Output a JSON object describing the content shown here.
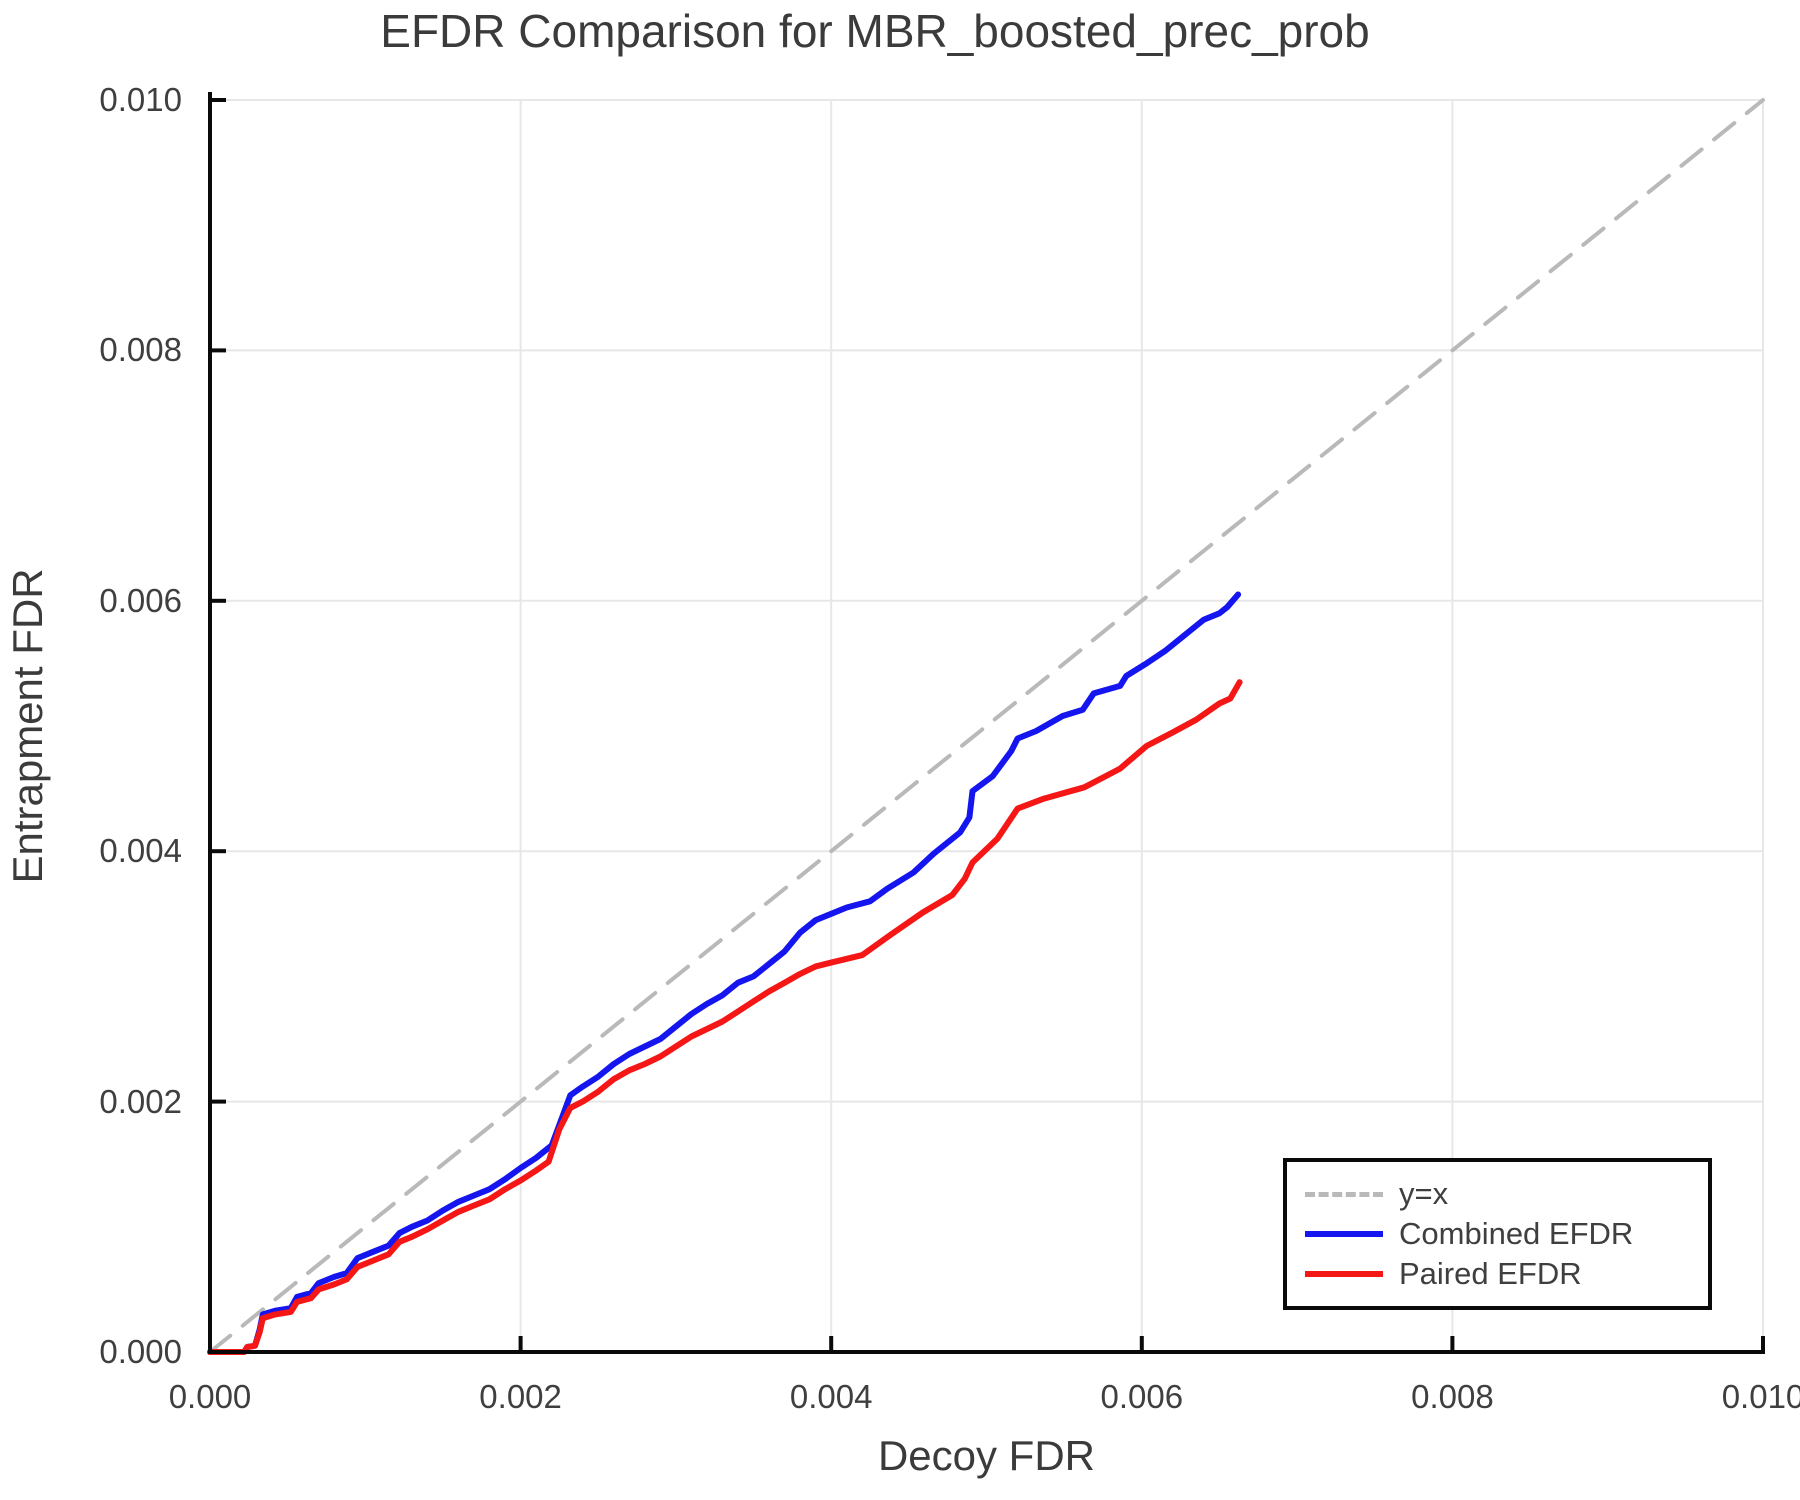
{
  "figure": {
    "title": "EFDR Comparison for MBR_boosted_prec_prob"
  },
  "colors": {
    "background": "#ffffff",
    "grid": "#e7e7e7",
    "spine": "#0a0a0a",
    "text": "#3b3b3b",
    "identity_line": "#b9b9b9",
    "combined_efdr": "#1515ef",
    "paired_efdr": "#f51616"
  },
  "chart_data": {
    "type": "line",
    "title": "EFDR Comparison for MBR_boosted_prec_prob",
    "xlabel": "Decoy FDR",
    "ylabel": "Entrapment FDR",
    "xlim": [
      0.0,
      0.01
    ],
    "ylim": [
      0.0,
      0.01
    ],
    "grid": true,
    "x_ticks": {
      "values": [
        0.0,
        0.002,
        0.004,
        0.006,
        0.008,
        0.01
      ],
      "labels": [
        "0.000",
        "0.002",
        "0.004",
        "0.006",
        "0.008",
        "0.010"
      ]
    },
    "y_ticks": {
      "values": [
        0.0,
        0.002,
        0.004,
        0.006,
        0.008,
        0.01
      ],
      "labels": [
        "0.000",
        "0.002",
        "0.004",
        "0.006",
        "0.008",
        "0.010"
      ]
    },
    "legend": {
      "position": "lower_right",
      "entries": [
        {
          "label": "y=x",
          "color": "#b9b9b9",
          "dashed": true
        },
        {
          "label": "Combined EFDR",
          "color": "#1515ef",
          "dashed": false
        },
        {
          "label": "Paired EFDR",
          "color": "#f51616",
          "dashed": false
        }
      ]
    },
    "series": [
      {
        "id": "identity",
        "name": "y=x",
        "color": "#b9b9b9",
        "width": 4,
        "dash": "26 16",
        "points": [
          [
            0.0,
            0.0
          ],
          [
            0.01,
            0.01
          ]
        ]
      },
      {
        "id": "combined-efdr",
        "name": "Combined EFDR",
        "color": "#1515ef",
        "width": 6,
        "dash": null,
        "points": [
          [
            0.0,
            0.0
          ],
          [
            0.00022,
            0.0
          ],
          [
            0.00024,
            4e-05
          ],
          [
            0.00029,
            5e-05
          ],
          [
            0.00032,
            0.00018
          ],
          [
            0.00034,
            0.0003
          ],
          [
            0.00042,
            0.00033
          ],
          [
            0.00052,
            0.00035
          ],
          [
            0.00056,
            0.00044
          ],
          [
            0.00065,
            0.00047
          ],
          [
            0.0007,
            0.00055
          ],
          [
            0.0008,
            0.0006
          ],
          [
            0.00088,
            0.00063
          ],
          [
            0.00095,
            0.00075
          ],
          [
            0.00105,
            0.0008
          ],
          [
            0.00115,
            0.00085
          ],
          [
            0.00122,
            0.00095
          ],
          [
            0.0013,
            0.001
          ],
          [
            0.0014,
            0.00105
          ],
          [
            0.0015,
            0.00113
          ],
          [
            0.0016,
            0.0012
          ],
          [
            0.0017,
            0.00125
          ],
          [
            0.0018,
            0.0013
          ],
          [
            0.0019,
            0.00138
          ],
          [
            0.002,
            0.00147
          ],
          [
            0.0021,
            0.00155
          ],
          [
            0.0022,
            0.00165
          ],
          [
            0.00226,
            0.00185
          ],
          [
            0.00232,
            0.00205
          ],
          [
            0.0024,
            0.00212
          ],
          [
            0.0025,
            0.0022
          ],
          [
            0.0026,
            0.0023
          ],
          [
            0.0027,
            0.00238
          ],
          [
            0.0028,
            0.00244
          ],
          [
            0.0029,
            0.0025
          ],
          [
            0.003,
            0.0026
          ],
          [
            0.0031,
            0.0027
          ],
          [
            0.0032,
            0.00278
          ],
          [
            0.0033,
            0.00285
          ],
          [
            0.0034,
            0.00295
          ],
          [
            0.0035,
            0.003
          ],
          [
            0.0036,
            0.0031
          ],
          [
            0.0037,
            0.0032
          ],
          [
            0.0038,
            0.00335
          ],
          [
            0.0039,
            0.00345
          ],
          [
            0.004,
            0.0035
          ],
          [
            0.0041,
            0.00355
          ],
          [
            0.00425,
            0.0036
          ],
          [
            0.00436,
            0.0037
          ],
          [
            0.00453,
            0.00383
          ],
          [
            0.00466,
            0.00398
          ],
          [
            0.00483,
            0.00415
          ],
          [
            0.00489,
            0.00427
          ],
          [
            0.00491,
            0.00448
          ],
          [
            0.00504,
            0.0046
          ],
          [
            0.00516,
            0.0048
          ],
          [
            0.0052,
            0.0049
          ],
          [
            0.00532,
            0.00496
          ],
          [
            0.00549,
            0.00508
          ],
          [
            0.00562,
            0.00513
          ],
          [
            0.00569,
            0.00526
          ],
          [
            0.00586,
            0.00532
          ],
          [
            0.0059,
            0.0054
          ],
          [
            0.00603,
            0.0055
          ],
          [
            0.00615,
            0.0056
          ],
          [
            0.0063,
            0.00575
          ],
          [
            0.0064,
            0.00585
          ],
          [
            0.0065,
            0.0059
          ],
          [
            0.00655,
            0.00595
          ],
          [
            0.00662,
            0.00605
          ]
        ]
      },
      {
        "id": "paired-efdr",
        "name": "Paired EFDR",
        "color": "#f51616",
        "width": 6,
        "dash": null,
        "points": [
          [
            0.0,
            0.0
          ],
          [
            0.00022,
            0.0
          ],
          [
            0.00024,
            4e-05
          ],
          [
            0.00029,
            5e-05
          ],
          [
            0.00032,
            0.00016
          ],
          [
            0.00034,
            0.00027
          ],
          [
            0.00042,
            0.0003
          ],
          [
            0.00052,
            0.00032
          ],
          [
            0.00056,
            0.0004
          ],
          [
            0.00065,
            0.00043
          ],
          [
            0.0007,
            0.0005
          ],
          [
            0.0008,
            0.00054
          ],
          [
            0.00088,
            0.00058
          ],
          [
            0.00095,
            0.00068
          ],
          [
            0.00105,
            0.00073
          ],
          [
            0.00115,
            0.00078
          ],
          [
            0.00122,
            0.00088
          ],
          [
            0.0013,
            0.00092
          ],
          [
            0.0014,
            0.00098
          ],
          [
            0.0015,
            0.00105
          ],
          [
            0.0016,
            0.00112
          ],
          [
            0.0017,
            0.00117
          ],
          [
            0.0018,
            0.00122
          ],
          [
            0.0019,
            0.0013
          ],
          [
            0.002,
            0.00137
          ],
          [
            0.0021,
            0.00145
          ],
          [
            0.00218,
            0.00152
          ],
          [
            0.00225,
            0.00178
          ],
          [
            0.00232,
            0.00195
          ],
          [
            0.0024,
            0.002
          ],
          [
            0.0025,
            0.00208
          ],
          [
            0.0026,
            0.00218
          ],
          [
            0.0027,
            0.00225
          ],
          [
            0.0028,
            0.0023
          ],
          [
            0.0029,
            0.00236
          ],
          [
            0.003,
            0.00244
          ],
          [
            0.0031,
            0.00252
          ],
          [
            0.0032,
            0.00258
          ],
          [
            0.0033,
            0.00264
          ],
          [
            0.0034,
            0.00272
          ],
          [
            0.0035,
            0.0028
          ],
          [
            0.0036,
            0.00288
          ],
          [
            0.0037,
            0.00295
          ],
          [
            0.0038,
            0.00302
          ],
          [
            0.0039,
            0.00308
          ],
          [
            0.004,
            0.00311
          ],
          [
            0.0042,
            0.00317
          ],
          [
            0.00438,
            0.00333
          ],
          [
            0.00459,
            0.00351
          ],
          [
            0.00478,
            0.00365
          ],
          [
            0.00486,
            0.00378
          ],
          [
            0.00491,
            0.00391
          ],
          [
            0.00507,
            0.0041
          ],
          [
            0.0052,
            0.00434
          ],
          [
            0.00537,
            0.00442
          ],
          [
            0.00563,
            0.00451
          ],
          [
            0.00586,
            0.00466
          ],
          [
            0.00603,
            0.00484
          ],
          [
            0.0062,
            0.00495
          ],
          [
            0.00635,
            0.00505
          ],
          [
            0.0065,
            0.00518
          ],
          [
            0.00657,
            0.00522
          ],
          [
            0.00663,
            0.00535
          ]
        ]
      }
    ]
  }
}
